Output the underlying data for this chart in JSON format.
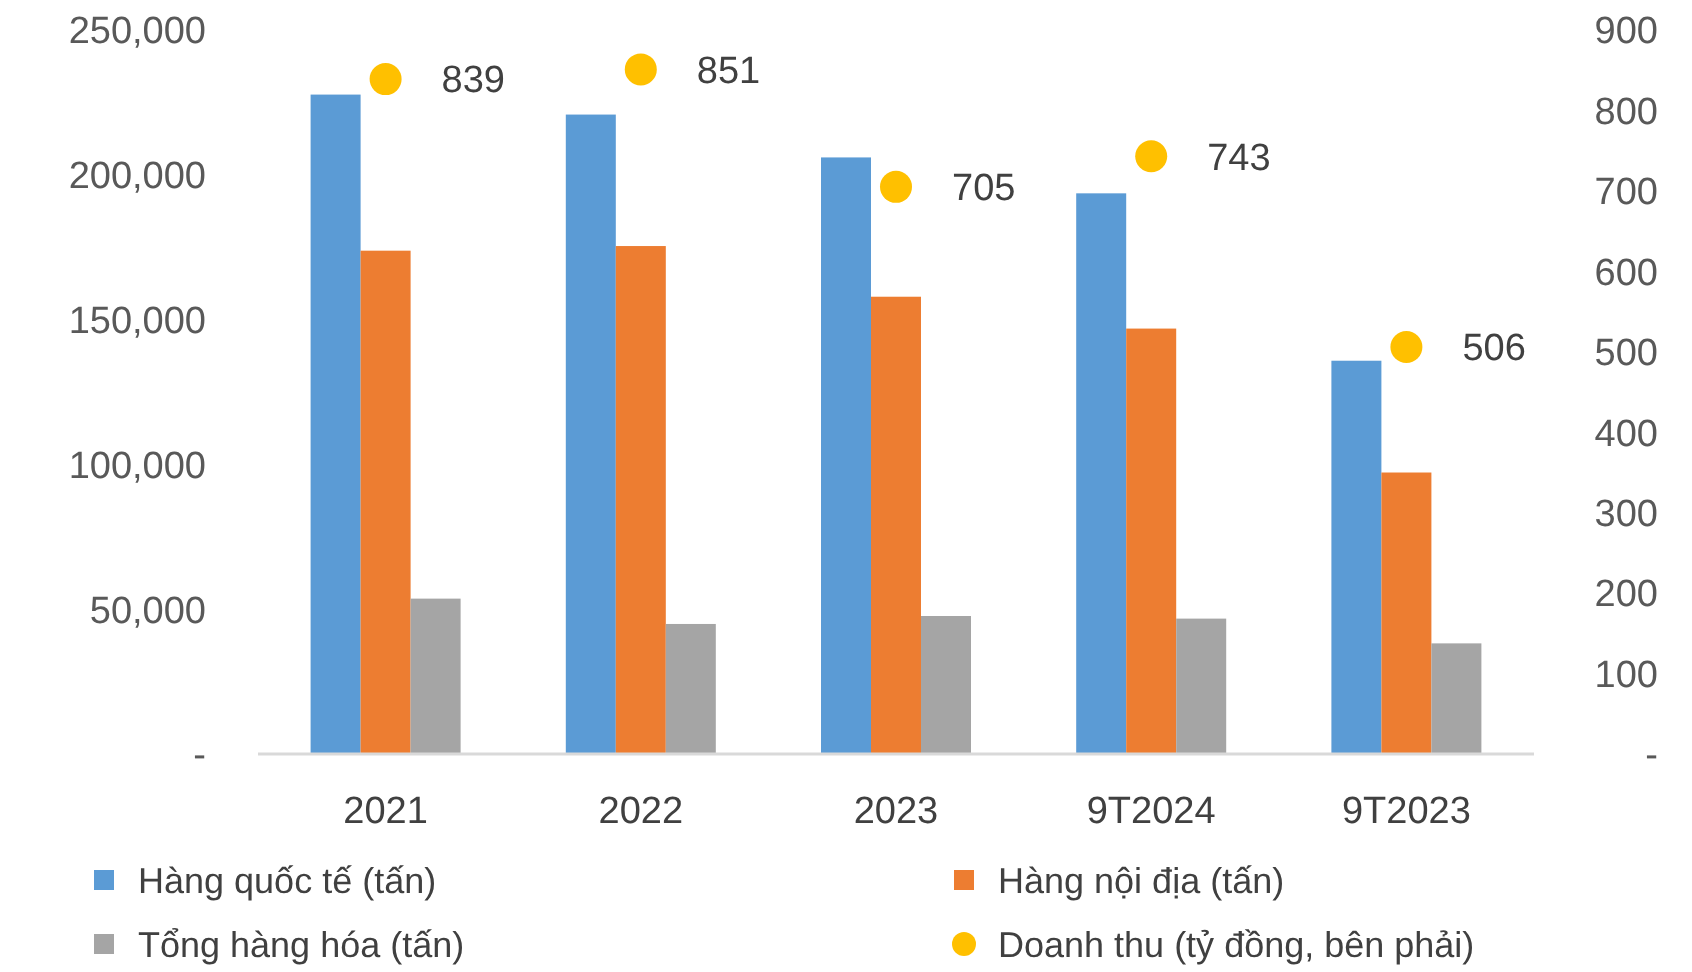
{
  "chart_data": {
    "type": "bar",
    "categories": [
      "2021",
      "2022",
      "2023",
      "9T2024",
      "9T2023"
    ],
    "series": [
      {
        "name": "Hàng quốc tế (tấn)",
        "color": "#5b9bd5",
        "values": [
          227700,
          220800,
          206000,
          193600,
          135800
        ]
      },
      {
        "name": "Hàng nội địa (tấn)",
        "color": "#ed7d31",
        "values": [
          173800,
          175400,
          157900,
          146900,
          97200
        ]
      },
      {
        "name": "Tổng hàng hóa (tấn)",
        "color": "#a5a5a5",
        "values": [
          53650,
          44900,
          47650,
          46750,
          38200
        ]
      },
      {
        "name": "Doanh thu (tỷ đồng, bên phải)",
        "type": "scatter",
        "axis": "y2",
        "color": "#ffc000",
        "values": [
          839,
          851,
          705,
          743,
          506
        ],
        "data_labels": true
      }
    ],
    "ylim": [
      0,
      250000
    ],
    "yticks": [
      {
        "value": 0,
        "label": "-"
      },
      {
        "value": 50000,
        "label": "50,000"
      },
      {
        "value": 100000,
        "label": "100,000"
      },
      {
        "value": 150000,
        "label": "150,000"
      },
      {
        "value": 200000,
        "label": "200,000"
      },
      {
        "value": 250000,
        "label": "250,000"
      }
    ],
    "y2lim": [
      0,
      900
    ],
    "y2ticks": [
      {
        "value": 0,
        "label": "-"
      },
      100,
      200,
      300,
      400,
      500,
      600,
      700,
      800,
      900
    ],
    "marker": "circle",
    "legend": "bottom",
    "grid": false
  }
}
